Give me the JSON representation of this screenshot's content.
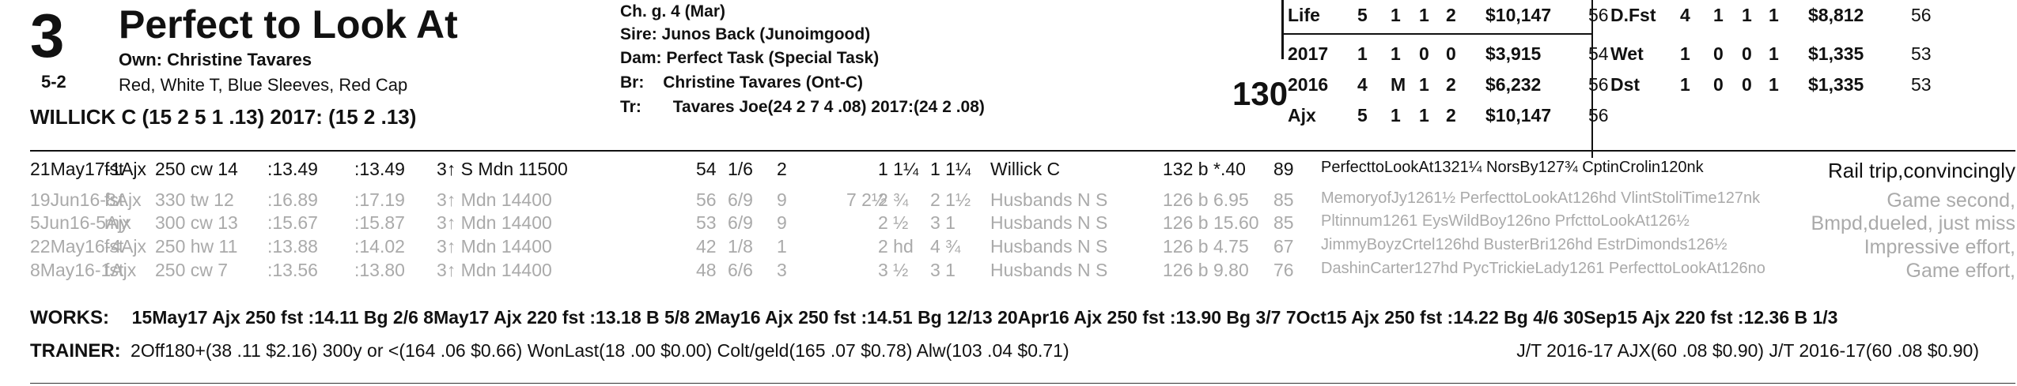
{
  "header": {
    "program_number": "3",
    "horse_name": "Perfect to Look At",
    "owner": "Own: Christine Tavares",
    "morning_line": "5-2",
    "silks": "Red, White T, Blue Sleeves, Red Cap",
    "jockey": "WILLICK C (15 2 5 1 .13) 2017: (15 2 .13)",
    "weight": "130"
  },
  "pedigree": {
    "ch": "Ch. g. 4 (Mar)",
    "sire_label": "Sire:",
    "sire": "Junos Back (Junoimgood)",
    "dam_label": "Dam:",
    "dam": "Perfect Task (Special Task)",
    "br_label": "Br:",
    "br": "Christine Tavares (Ont-C)",
    "tr_label": "Tr:",
    "tr": "Tavares Joe(24 2 7 4 .08)  2017:(24 2 .08)"
  },
  "record_left": [
    {
      "label": "Life",
      "st": "5",
      "w": "1",
      "p": "1",
      "s": "2",
      "earn": "$10,147",
      "fig": "56"
    },
    {
      "label": "2017",
      "st": "1",
      "w": "1",
      "p": "0",
      "s": "0",
      "earn": "$3,915",
      "fig": "54"
    },
    {
      "label": "2016",
      "st": "4",
      "w": "M",
      "p": "1",
      "s": "2",
      "earn": "$6,232",
      "fig": "56"
    },
    {
      "label": "Ajx",
      "st": "5",
      "w": "1",
      "p": "1",
      "s": "2",
      "earn": "$10,147",
      "fig": "56"
    }
  ],
  "record_right": [
    {
      "label": "D.Fst",
      "st": "4",
      "w": "1",
      "p": "1",
      "s": "1",
      "earn": "$8,812",
      "fig": "56"
    },
    {
      "label": "Wet",
      "st": "1",
      "w": "0",
      "p": "0",
      "s": "1",
      "earn": "$1,335",
      "fig": "53"
    },
    {
      "label": "Dst",
      "st": "1",
      "w": "0",
      "p": "0",
      "s": "1",
      "earn": "$1,335",
      "fig": "53"
    }
  ],
  "races": [
    {
      "date": "21May17-1Ajx",
      "cond": "fst",
      "dist": "250 cw 14",
      "t1": ":13.49",
      "t2": ":13.49",
      "cls": "3↑ S Mdn 11500",
      "fig": "54",
      "pp": "1/6",
      "st": "2",
      "c1": "1 1¼",
      "fin": "1 1¼",
      "jockey": "Willick C",
      "wt": "132 b",
      "odds": "*.40",
      "spd": "89",
      "comment": "PerfecttoLookAt1321¼ NorsBy127¾ CptinCrolin120nk",
      "remark": "Rail trip,convincingly"
    },
    {
      "date": "19Jun16-8Ajx",
      "cond": "fst",
      "dist": "330 tw 12",
      "t1": ":16.89",
      "t2": ":17.19",
      "cls": "3↑ Mdn 14400",
      "fig": "56",
      "pp": "6/9",
      "st": "9",
      "c0": "7 2½",
      "c1": "2 ¾",
      "fin": "2 1½",
      "jockey": "Husbands N S",
      "wt": "126 b",
      "odds": "6.95",
      "spd": "85",
      "comment": "MemoryofJy1261½ PerfecttoLookAt126hd VlintStoliTime127nk",
      "remark": "Game second,"
    },
    {
      "date": "5Jun16-5Ajx",
      "cond": "my",
      "dist": "300 cw 13",
      "t1": ":15.67",
      "t2": ":15.87",
      "cls": "3↑ Mdn 14400",
      "fig": "53",
      "pp": "6/9",
      "st": "9",
      "c1": "2 ½",
      "fin": "3 1",
      "jockey": "Husbands N S",
      "wt": "126 b",
      "odds": "15.60",
      "spd": "85",
      "comment": "Pltinnum1261 EysWildBoy126no PrfcttoLookAt126½",
      "remark": "Bmpd,dueled, just miss"
    },
    {
      "date": "22May16-4Ajx",
      "cond": "fst",
      "dist": "250 hw 11",
      "t1": ":13.88",
      "t2": ":14.02",
      "cls": "3↑ Mdn 14400",
      "fig": "42",
      "pp": "1/8",
      "st": "1",
      "c1": "2 hd",
      "fin": "4 ¾",
      "jockey": "Husbands N S",
      "wt": "126 b",
      "odds": "4.75",
      "spd": "67",
      "comment": "JimmyBoyzCrtel126hd BusterBri126hd EstrDimonds126½",
      "remark": "Impressive effort,"
    },
    {
      "date": "8May16-1Ajx",
      "cond": "fst",
      "dist": "250 cw 7",
      "t1": ":13.56",
      "t2": ":13.80",
      "cls": "3↑ Mdn 14400",
      "fig": "48",
      "pp": "6/6",
      "st": "3",
      "c1": "3 ½",
      "fin": "3 1",
      "jockey": "Husbands N S",
      "wt": "126 b",
      "odds": "9.80",
      "spd": "76",
      "comment": "DashinCarter127hd PycTrickieLady1261 PerfecttoLookAt126no",
      "remark": "Game effort,"
    }
  ],
  "works": {
    "label": "WORKS:",
    "text": "15May17 Ajx 250 fst :14.11 Bg 2/6   8May17 Ajx 220 fst :13.18 B 5/8   2May16 Ajx 250 fst :14.51 Bg 12/13   20Apr16 Ajx 250 fst :13.90 Bg 3/7   7Oct15 Ajx 250 fst :14.22 Bg 4/6   30Sep15 Ajx 220 fst :12.36 B 1/3"
  },
  "trainer": {
    "label": "TRAINER:",
    "text": "2Off180+(38 .11 $2.16) 300y or <(164 .06 $0.66) WonLast(18 .00 $0.00) Colt/geld(165 .07 $0.78) Alw(103 .04 $0.71)",
    "jt": "J/T 2016-17 AJX(60 .08 $0.90)  J/T 2016-17(60 .08 $0.90)"
  }
}
